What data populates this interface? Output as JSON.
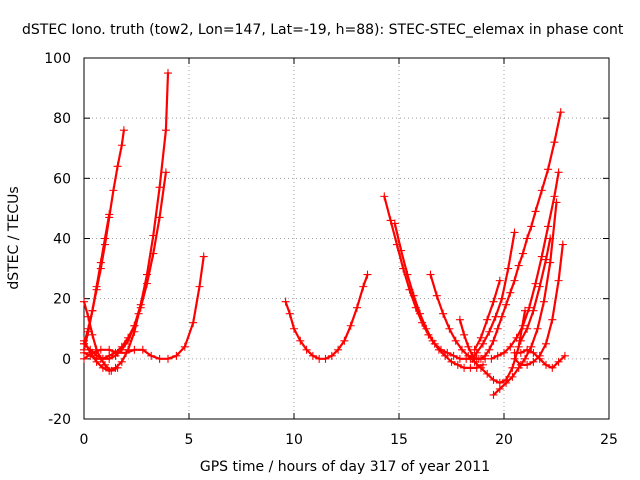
{
  "chart_data": {
    "type": "scatter",
    "title": "dSTEC Iono. truth (tow2, Lon=147, Lat=-19, h=88): STEC-STEC_elemax in phase cont",
    "xlabel": "GPS time / hours of day 317 of year 2011",
    "ylabel": "dSTEC  / TECUs",
    "xlim": [
      0,
      25
    ],
    "ylim": [
      -20,
      100
    ],
    "xticks": [
      "0",
      "5",
      "10",
      "15",
      "20",
      "25"
    ],
    "yticks": [
      "-20",
      "0",
      "20",
      "40",
      "60",
      "80",
      "100"
    ],
    "grid": true,
    "marker": "plus",
    "color": "#ff0000",
    "series": [
      {
        "x": [
          0.0,
          0.2,
          0.4,
          0.6,
          0.8,
          1.0,
          1.2,
          1.4,
          1.6,
          1.8,
          1.9
        ],
        "y": [
          5,
          10,
          16,
          23,
          30,
          38,
          47,
          56,
          64,
          71,
          76
        ]
      },
      {
        "x": [
          0.0,
          0.2,
          0.4,
          0.6,
          0.8,
          1.0,
          1.2
        ],
        "y": [
          3,
          9,
          16,
          24,
          32,
          40,
          48
        ]
      },
      {
        "x": [
          0.0,
          0.3,
          0.6,
          0.9,
          1.2,
          1.5,
          1.8,
          2.1,
          2.4,
          2.7,
          3.0,
          3.3,
          3.6,
          3.9,
          4.0
        ],
        "y": [
          5,
          3,
          1,
          0,
          0,
          1,
          3,
          6,
          11,
          18,
          28,
          41,
          57,
          76,
          95
        ]
      },
      {
        "x": [
          0.0,
          0.3,
          0.6,
          0.9,
          1.2,
          1.5,
          1.8,
          2.1,
          2.4,
          2.7,
          3.0,
          3.3,
          3.6,
          3.9
        ],
        "y": [
          2,
          1,
          0,
          0,
          1,
          2,
          4,
          7,
          11,
          17,
          25,
          35,
          47,
          62
        ]
      },
      {
        "x": [
          0.0,
          0.2,
          0.4,
          0.6,
          0.8,
          1.0,
          1.3,
          1.6
        ],
        "y": [
          19,
          14,
          8,
          3,
          0,
          -2,
          -4,
          -3
        ]
      },
      {
        "x": [
          0.0,
          0.3,
          0.6,
          0.9,
          1.2,
          1.5,
          1.8,
          2.1,
          2.4,
          2.6
        ],
        "y": [
          6,
          2,
          -1,
          -3,
          -4,
          -3,
          -1,
          3,
          9,
          15
        ]
      },
      {
        "x": [
          0.0,
          0.4,
          0.8,
          1.2,
          1.6,
          2.0,
          2.4,
          2.8,
          3.2,
          3.6,
          4.0,
          4.4,
          4.8,
          5.2,
          5.5,
          5.7
        ],
        "y": [
          0,
          2,
          3,
          3,
          2,
          2,
          3,
          3,
          1,
          0,
          0,
          1,
          4,
          12,
          24,
          34
        ]
      },
      {
        "x": [
          9.6,
          9.8,
          10.0,
          10.3,
          10.6,
          10.9,
          11.2,
          11.5,
          11.8,
          12.1,
          12.4,
          12.7,
          13.0,
          13.3,
          13.5
        ],
        "y": [
          19,
          15,
          10,
          6,
          3,
          1,
          0,
          0,
          1,
          3,
          6,
          11,
          17,
          24,
          28
        ]
      },
      {
        "x": [
          14.3,
          14.6,
          14.9,
          15.2,
          15.5,
          15.8,
          16.1,
          16.4,
          16.7,
          17.0,
          17.3,
          17.6,
          17.9,
          18.2,
          18.5,
          18.8,
          19.1
        ],
        "y": [
          54,
          46,
          38,
          30,
          23,
          17,
          12,
          8,
          5,
          3,
          2,
          1,
          0,
          0,
          0,
          0,
          0
        ]
      },
      {
        "x": [
          14.8,
          15.1,
          15.4,
          15.7,
          16.0,
          16.3,
          16.6,
          16.9,
          17.2,
          17.5,
          17.8,
          18.1,
          18.4,
          18.7,
          19.0
        ],
        "y": [
          45,
          36,
          28,
          21,
          15,
          10,
          6,
          3,
          1,
          -1,
          -2,
          -3,
          -3,
          -3,
          -2
        ]
      },
      {
        "x": [
          16.5,
          16.8,
          17.1,
          17.4,
          17.7,
          18.0,
          18.3,
          18.6,
          18.9,
          19.2,
          19.5,
          19.8,
          20.1,
          20.4,
          20.7,
          21.0
        ],
        "y": [
          28,
          21,
          15,
          10,
          6,
          3,
          1,
          -1,
          -3,
          -5,
          -7,
          -8,
          -7,
          -3,
          4,
          16
        ]
      },
      {
        "x": [
          17.9,
          18.1,
          18.3,
          18.5,
          18.7,
          18.9,
          19.1,
          19.3,
          19.5,
          19.7,
          19.9,
          20.1,
          20.3,
          20.5,
          20.7,
          20.9,
          21.1,
          21.3,
          21.5,
          21.8,
          22.1,
          22.4,
          22.7
        ],
        "y": [
          13,
          8,
          4,
          1,
          0,
          0,
          1,
          3,
          6,
          10,
          14,
          18,
          22,
          26,
          31,
          35,
          40,
          44,
          49,
          56,
          63,
          72,
          82
        ]
      },
      {
        "x": [
          18.4,
          18.7,
          19.0,
          19.3,
          19.6,
          19.9,
          20.2,
          20.5
        ],
        "y": [
          0,
          2,
          5,
          9,
          14,
          20,
          30,
          42
        ]
      },
      {
        "x": [
          18.6,
          18.9,
          19.2,
          19.5,
          19.8
        ],
        "y": [
          3,
          7,
          13,
          19,
          26
        ]
      },
      {
        "x": [
          19.5,
          19.8,
          20.1,
          20.4,
          20.7,
          21.0,
          21.3,
          21.6,
          21.9,
          22.2,
          22.5
        ],
        "y": [
          -12,
          -10,
          -8,
          -6,
          -3,
          0,
          4,
          10,
          19,
          32,
          52
        ]
      },
      {
        "x": [
          20.5,
          20.8,
          21.1,
          21.4,
          21.7,
          22.0,
          22.3,
          22.6,
          22.8
        ],
        "y": [
          0,
          -2,
          -2,
          -1,
          1,
          5,
          13,
          26,
          38
        ]
      },
      {
        "x": [
          19.4,
          19.7,
          20.0,
          20.3,
          20.6,
          20.9,
          21.2,
          21.5,
          21.8,
          22.1,
          22.4,
          22.6
        ],
        "y": [
          0,
          1,
          2,
          4,
          7,
          11,
          17,
          25,
          34,
          44,
          54,
          62
        ]
      },
      {
        "x": [
          20.5,
          20.8,
          21.1,
          21.4,
          21.7,
          22.0,
          22.3,
          22.6,
          22.9
        ],
        "y": [
          2,
          2,
          3,
          2,
          0,
          -2,
          -3,
          -1,
          1
        ]
      },
      {
        "x": [
          20.8,
          21.1,
          21.4,
          21.7,
          22.0,
          22.2
        ],
        "y": [
          6,
          10,
          16,
          24,
          33,
          40
        ]
      }
    ]
  }
}
